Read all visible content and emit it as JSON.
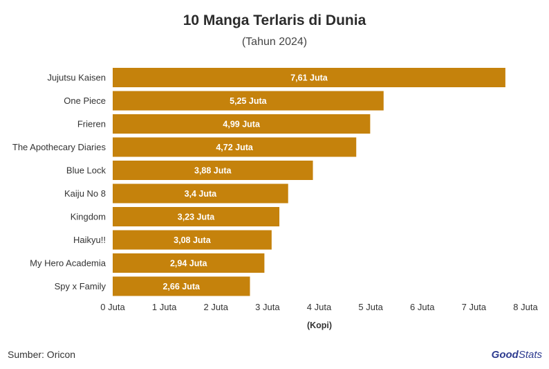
{
  "chart_data": {
    "type": "bar",
    "orientation": "horizontal",
    "title": "10 Manga Terlaris di Dunia",
    "subtitle": "(Tahun 2024)",
    "xlabel": "(Kopi)",
    "ylabel": "",
    "categories": [
      "Jujutsu Kaisen",
      "One Piece",
      "Frieren",
      "The Apothecary Diaries",
      "Blue Lock",
      "Kaiju No 8",
      "Kingdom",
      "Haikyu!!",
      "My Hero Academia",
      "Spy x Family"
    ],
    "values": [
      7.61,
      5.25,
      4.99,
      4.72,
      3.88,
      3.4,
      3.23,
      3.08,
      2.94,
      2.66
    ],
    "data_labels": [
      "7,61 Juta",
      "5,25 Juta",
      "4,99 Juta",
      "4,72 Juta",
      "3,88 Juta",
      "3,4 Juta",
      "3,23 Juta",
      "3,08 Juta",
      "2,94 Juta",
      "2,66 Juta"
    ],
    "xlim": [
      0,
      8
    ],
    "xticks": [
      0,
      1,
      2,
      3,
      4,
      5,
      6,
      7,
      8
    ],
    "xtick_labels": [
      "0 Juta",
      "1 Juta",
      "2 Juta",
      "3 Juta",
      "4 Juta",
      "5 Juta",
      "6 Juta",
      "7 Juta",
      "8 Juta"
    ],
    "bar_color": "#C5820C",
    "label_color": "#ffffff",
    "grid": false
  },
  "footer": {
    "source": "Sumber: Oricon",
    "logo_good": "Good",
    "logo_stats": "Stats"
  }
}
